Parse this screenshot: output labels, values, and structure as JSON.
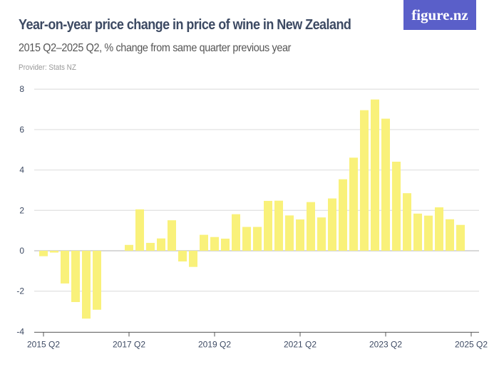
{
  "header": {
    "title": "Year-on-year price change in price of wine in New Zealand",
    "subtitle": "2015 Q2–2025 Q2, % change from same quarter previous year",
    "provider": "Provider: Stats NZ",
    "logo_text": "figure.nz"
  },
  "colors": {
    "bar": "#f9f17a",
    "logo_bg": "#5a5fc9",
    "grid": "#dddddd",
    "text": "#3d4a63"
  },
  "chart_data": {
    "type": "bar",
    "title": "Year-on-year price change in price of wine in New Zealand",
    "subtitle": "2015 Q2–2025 Q2, % change from same quarter previous year",
    "xlabel": "",
    "ylabel": "",
    "ylim": [
      -4,
      8
    ],
    "yticks": [
      -4,
      -2,
      0,
      2,
      4,
      6,
      8
    ],
    "ytick_labels": [
      "-4",
      "-2",
      "0",
      "2",
      "4",
      "6",
      "8"
    ],
    "xtick_labels": [
      "2015 Q2",
      "2017 Q2",
      "2019 Q2",
      "2021 Q2",
      "2023 Q2",
      "2025 Q2"
    ],
    "grid": true,
    "categories": [
      "2015 Q2",
      "2015 Q3",
      "2015 Q4",
      "2016 Q1",
      "2016 Q2",
      "2016 Q3",
      "2016 Q4",
      "2017 Q1",
      "2017 Q2",
      "2017 Q3",
      "2017 Q4",
      "2018 Q1",
      "2018 Q2",
      "2018 Q3",
      "2018 Q4",
      "2019 Q1",
      "2019 Q2",
      "2019 Q3",
      "2019 Q4",
      "2020 Q1",
      "2020 Q2",
      "2020 Q3",
      "2020 Q4",
      "2021 Q1",
      "2021 Q2",
      "2021 Q3",
      "2021 Q4",
      "2022 Q1",
      "2022 Q2",
      "2022 Q3",
      "2022 Q4",
      "2023 Q1",
      "2023 Q2",
      "2023 Q3",
      "2023 Q4",
      "2024 Q1",
      "2024 Q2",
      "2024 Q3",
      "2024 Q4",
      "2025 Q1",
      "2025 Q2"
    ],
    "values": [
      -0.27,
      -0.09,
      -1.62,
      -2.54,
      -3.36,
      -2.92,
      null,
      null,
      0.29,
      2.05,
      0.39,
      0.61,
      1.51,
      -0.53,
      -0.8,
      0.79,
      0.68,
      0.6,
      1.81,
      1.18,
      1.18,
      2.47,
      2.48,
      1.75,
      1.55,
      2.41,
      1.65,
      2.59,
      3.54,
      4.61,
      6.96,
      7.49,
      6.54,
      4.41,
      2.85,
      1.84,
      1.74,
      2.15,
      1.56,
      1.28,
      null
    ]
  }
}
